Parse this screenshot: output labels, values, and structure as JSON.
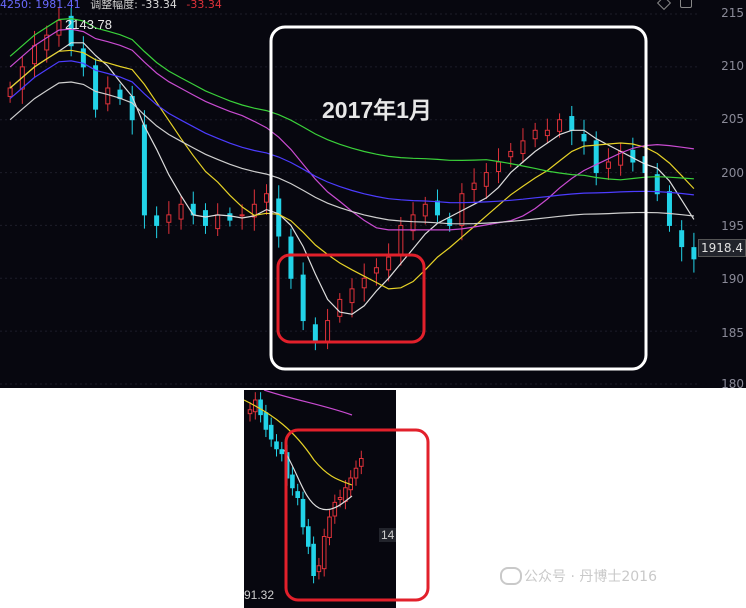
{
  "header": {
    "ma_values": "4250: 1981.41",
    "adjust_label": "调整幅度:",
    "adjust_value": "-33.34",
    "adjust_value2": "-33.34"
  },
  "annotation_title": "2017年1月",
  "high_label": "2143.78",
  "price_tag": "1918.4",
  "inset_low_label": "91.32",
  "inset_axis_label": "14",
  "watermark": "公众号 · 丹博士2016",
  "colors": {
    "background": "#07070f",
    "up_candle": "#e0323a",
    "down_candle": "#22d3e8",
    "highlight_box_white": "#ffffff",
    "highlight_box_red": "#e2202b",
    "ma5": "#dddddd",
    "ma10": "#e6d227",
    "ma20": "#c94bd1",
    "ma60": "#3ad13a",
    "ma120": "#4c3cff",
    "ma250": "#cfcfcf"
  },
  "chart_data": [
    {
      "type": "candlestick",
      "title": "",
      "y_axis_ticks": [
        "215",
        "210",
        "205",
        "200",
        "195",
        "190",
        "185",
        "180"
      ],
      "ylim": [
        1800,
        2150
      ],
      "series": [
        {
          "name": "price",
          "values": [
            2080,
            2100,
            2120,
            2130,
            2143.78,
            2120,
            2100,
            2060,
            2080,
            2070,
            2050,
            1960,
            1950,
            1960,
            1970,
            1960,
            1950,
            1960,
            1955,
            1960,
            1970,
            1980,
            1940,
            1900,
            1860,
            1840,
            1860,
            1880,
            1890,
            1900,
            1910,
            1920,
            1950,
            1960,
            1970,
            1960,
            1950,
            1980,
            1990,
            2000,
            2010,
            2020,
            2030,
            2040,
            2040,
            2050,
            2040,
            2030,
            2000,
            2010,
            2020,
            2010,
            2000,
            1980,
            1950,
            1930,
            1918.4
          ]
        }
      ]
    },
    {
      "type": "candlestick",
      "title": "",
      "y_axis_ticks": [
        "14"
      ],
      "series": [
        {
          "name": "price",
          "values": []
        }
      ]
    }
  ]
}
